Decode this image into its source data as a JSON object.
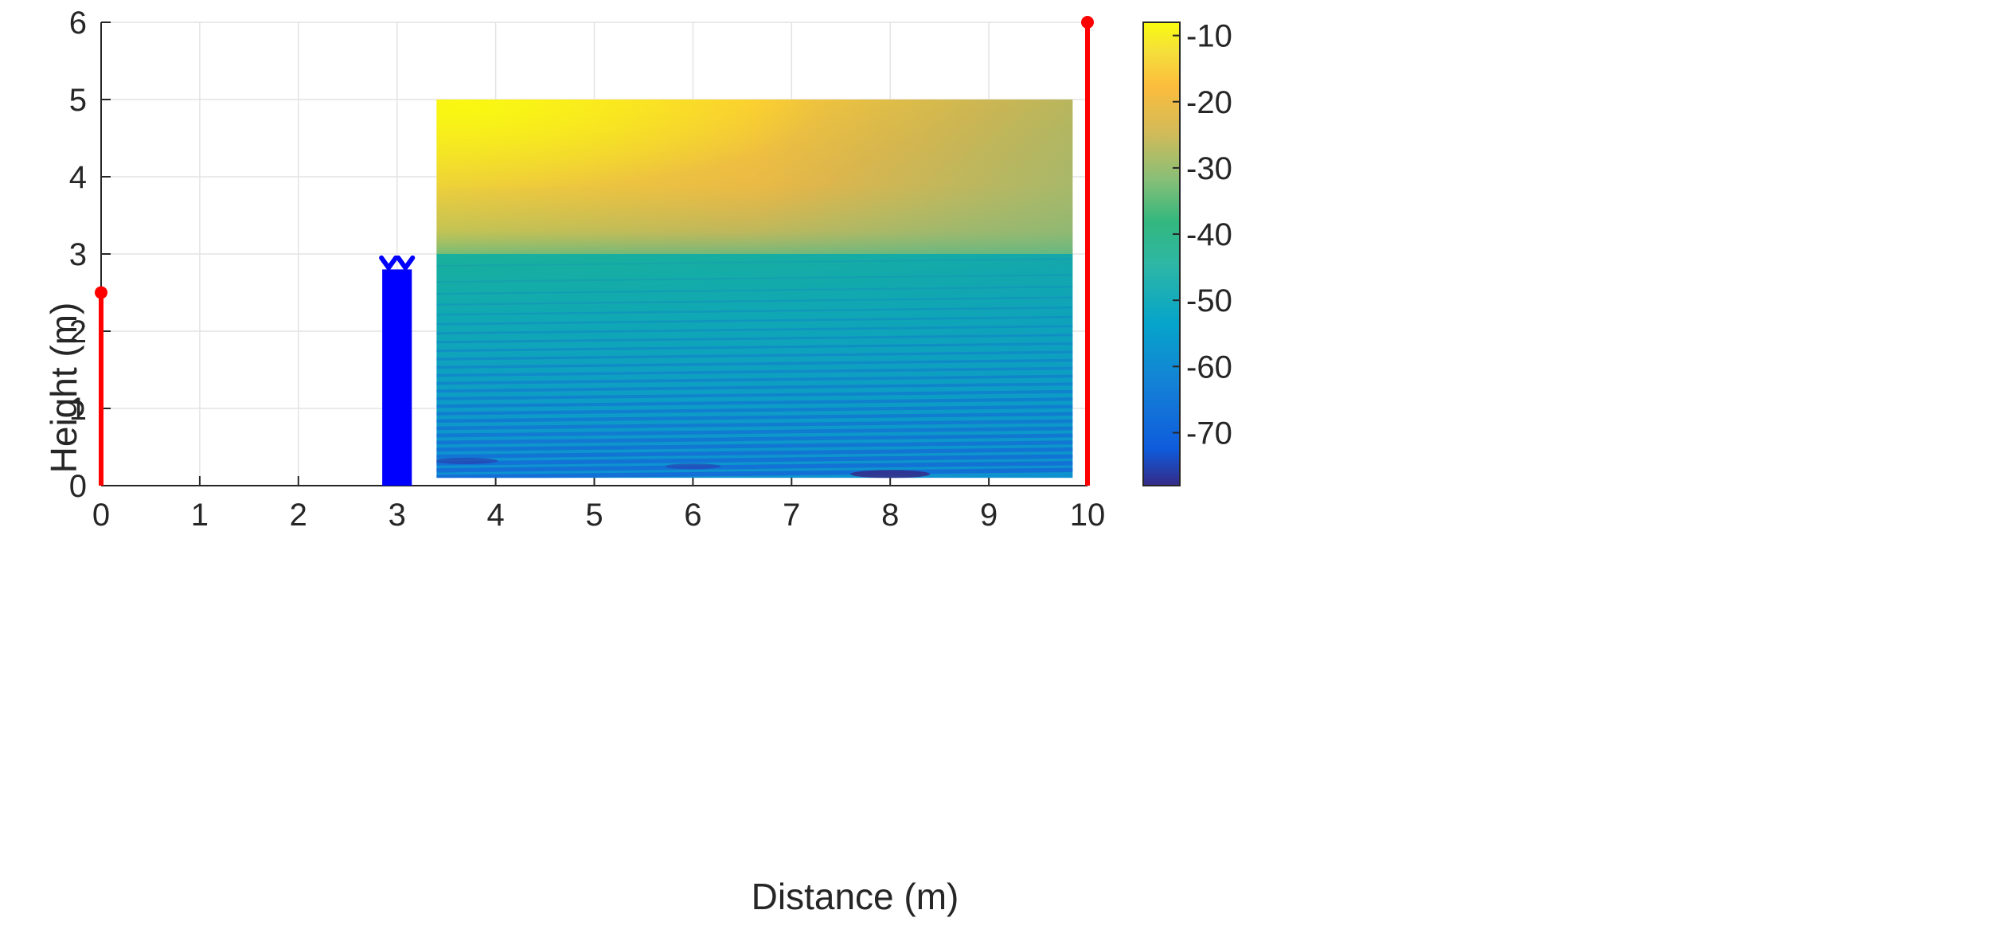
{
  "chart_data": {
    "type": "heatmap",
    "title": "",
    "xlabel": "Distance (m)",
    "ylabel": "Height (m)",
    "xlim": [
      0,
      10
    ],
    "ylim": [
      0,
      6
    ],
    "x_ticks": [
      "0",
      "1",
      "2",
      "3",
      "4",
      "5",
      "6",
      "7",
      "8",
      "9",
      "10"
    ],
    "y_ticks": [
      "0",
      "1",
      "2",
      "3",
      "4",
      "5",
      "6"
    ],
    "grid": true,
    "colormap": "parula",
    "heatmap_extent": {
      "x": [
        3.4,
        9.85
      ],
      "y": [
        0.1,
        5.0
      ]
    },
    "heatmap_field": {
      "upper_region": {
        "y_range": [
          3.0,
          5.0
        ],
        "value_range": [
          -35,
          -12
        ],
        "brightest_near": [
          3.5,
          4.8
        ]
      },
      "lower_region": {
        "y_range": [
          0.1,
          3.0
        ],
        "value_range": [
          -77,
          -40
        ],
        "darkest_near": [
          8.0,
          0.15
        ]
      }
    },
    "colorbar": {
      "ticks": [
        "-10",
        "-20",
        "-30",
        "-40",
        "-50",
        "-60",
        "-70"
      ],
      "tick_values": [
        -10,
        -20,
        -30,
        -40,
        -50,
        -60,
        -70
      ],
      "range": [
        -78,
        -8
      ]
    },
    "poles": [
      {
        "x": 0,
        "height": 2.5,
        "color": "#ff0000"
      },
      {
        "x": 10,
        "height": 6.0,
        "color": "#ff0000"
      }
    ],
    "obstacle": {
      "x_range": [
        2.85,
        3.15
      ],
      "height": 2.8,
      "top_marks_height": 2.95,
      "color": "#0000ff"
    }
  }
}
